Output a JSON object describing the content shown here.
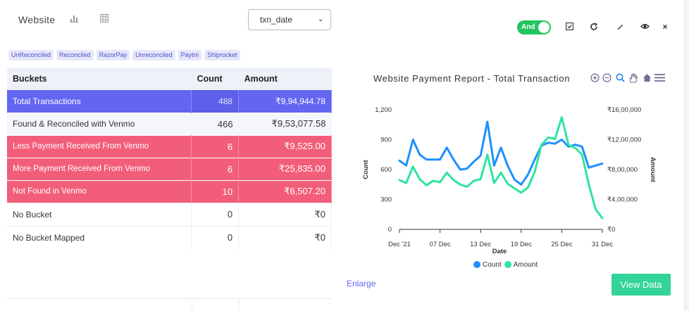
{
  "header": {
    "title": "Website",
    "date_select": "txn_date",
    "toggle_label": "And",
    "close_label": "×"
  },
  "chips": [
    "UnReconciled",
    "Reconciled",
    "RazorPay",
    "Unreconciled",
    "Paytm",
    "Shiprocket"
  ],
  "table": {
    "headers": [
      "Buckets",
      "Count",
      "Amount"
    ],
    "rows": [
      {
        "bucket": "Total Transactions",
        "count": "488",
        "amount": "₹9,94,944.78"
      },
      {
        "bucket": "Found & Reconciled with Venmo",
        "count": "466",
        "amount": "₹9,53,077.58"
      },
      {
        "bucket": "Less Payment Received From Venmo",
        "count": "6",
        "amount": "₹9,525.00"
      },
      {
        "bucket": "More Payment Received From Venmo",
        "count": "6",
        "amount": "₹25,835.00"
      },
      {
        "bucket": "Not Found in Venmo",
        "count": "10",
        "amount": "₹6,507.20"
      },
      {
        "bucket": "No Bucket",
        "count": "0",
        "amount": "₹0"
      },
      {
        "bucket": "No Bucket Mapped",
        "count": "0",
        "amount": "₹0"
      }
    ]
  },
  "footer": {
    "enlarge": "Enlarge",
    "view_data": "View Data"
  },
  "colors": {
    "accent": "#6366f1",
    "danger": "#f25e7a",
    "success": "#22c55e",
    "count_series": "#1e90ff",
    "amount_series": "#2ee59d"
  },
  "chart_data": {
    "type": "line",
    "title": "Website Payment Report - Total Transaction",
    "xlabel": "Date",
    "ylabel_left": "Count",
    "ylabel_right": "Amount",
    "x_ticks": [
      "Dec '21",
      "07 Dec",
      "13 Dec",
      "19 Dec",
      "25 Dec",
      "31 Dec"
    ],
    "y_left_ticks": [
      "0",
      "300",
      "600",
      "900",
      "1,200"
    ],
    "y_right_ticks": [
      "₹0",
      "₹4,00,000",
      "₹8,00,000",
      "₹12,00,000",
      "₹16,00,000"
    ],
    "ylim_left": [
      0,
      1200
    ],
    "ylim_right": [
      0,
      1600000
    ],
    "x": [
      "01 Dec",
      "02 Dec",
      "03 Dec",
      "04 Dec",
      "05 Dec",
      "06 Dec",
      "07 Dec",
      "08 Dec",
      "09 Dec",
      "10 Dec",
      "11 Dec",
      "12 Dec",
      "13 Dec",
      "14 Dec",
      "15 Dec",
      "16 Dec",
      "17 Dec",
      "18 Dec",
      "19 Dec",
      "20 Dec",
      "21 Dec",
      "22 Dec",
      "23 Dec",
      "24 Dec",
      "25 Dec",
      "26 Dec",
      "27 Dec",
      "28 Dec",
      "29 Dec",
      "30 Dec",
      "31 Dec"
    ],
    "series": [
      {
        "name": "Count",
        "axis": "left",
        "values": [
          690,
          640,
          900,
          750,
          700,
          700,
          700,
          820,
          700,
          600,
          610,
          680,
          740,
          1080,
          640,
          820,
          640,
          500,
          450,
          550,
          700,
          840,
          870,
          860,
          900,
          830,
          850,
          830,
          620,
          640,
          660
        ]
      },
      {
        "name": "Amount",
        "axis": "right",
        "values": [
          660000,
          620000,
          840000,
          670000,
          590000,
          650000,
          630000,
          760000,
          660000,
          600000,
          570000,
          650000,
          670000,
          1000000,
          620000,
          760000,
          610000,
          550000,
          490000,
          560000,
          770000,
          1130000,
          1230000,
          1210000,
          1500000,
          1130000,
          1090000,
          1000000,
          600000,
          270000,
          150000
        ]
      }
    ],
    "legend": "bottom-center",
    "grid": false
  }
}
